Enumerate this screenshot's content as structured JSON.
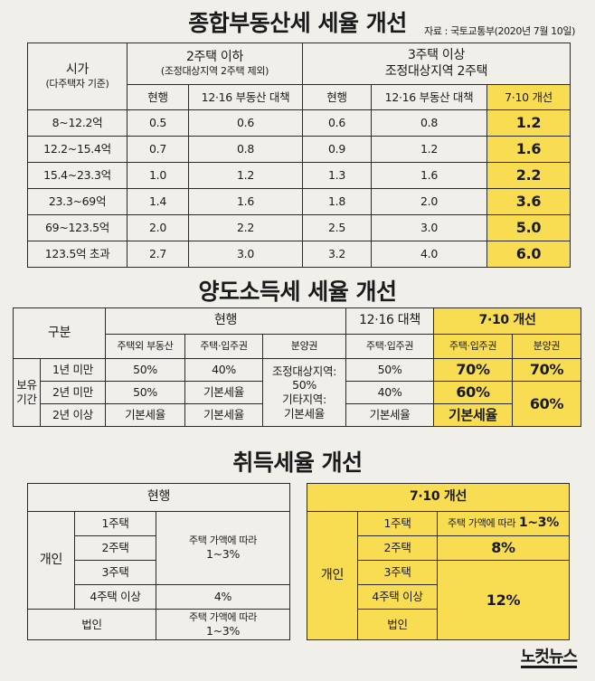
{
  "titles": {
    "t1": "종합부동산세 세율 개선",
    "t2": "양도소득세 세율 개선",
    "t3": "취득세율 개선"
  },
  "source": "자료 : 국토교통부(2020년 7월 10일)",
  "table1": {
    "rowHeader1": "시가",
    "rowHeader2": "(다주택자 기준)",
    "group1_l1": "2주택 이하",
    "group1_l2": "(조정대상지역 2주택 제외)",
    "group2_l1": "3주택 이상",
    "group2_l2": "조정대상지역 2주택",
    "sub_current1": "현행",
    "sub_plan1": "12·16 부동산 대책",
    "sub_current2": "현행",
    "sub_plan2": "12·16 부동산 대책",
    "sub_new": "7·10 개선",
    "rows": [
      {
        "range": "8~12.2억",
        "a": "0.5",
        "b": "0.6",
        "c": "0.6",
        "d": "0.8",
        "e": "1.2"
      },
      {
        "range": "12.2~15.4억",
        "a": "0.7",
        "b": "0.8",
        "c": "0.9",
        "d": "1.2",
        "e": "1.6"
      },
      {
        "range": "15.4~23.3억",
        "a": "1.0",
        "b": "1.2",
        "c": "1.3",
        "d": "1.6",
        "e": "2.2"
      },
      {
        "range": "23.3~69억",
        "a": "1.4",
        "b": "1.6",
        "c": "1.8",
        "d": "2.0",
        "e": "3.6"
      },
      {
        "range": "69~123.5억",
        "a": "2.0",
        "b": "2.2",
        "c": "2.5",
        "d": "3.0",
        "e": "5.0"
      },
      {
        "range": "123.5억 초과",
        "a": "2.7",
        "b": "3.0",
        "c": "3.2",
        "d": "4.0",
        "e": "6.0"
      }
    ]
  },
  "table2": {
    "gubun": "구분",
    "current": "현행",
    "plan": "12·16 대책",
    "new": "7·10 개선",
    "h_cur1": "주택외 부동산",
    "h_cur2": "주택·입주권",
    "h_cur3": "분양권",
    "h_plan": "주택·입주권",
    "h_new1": "주택·입주권",
    "h_new2": "분양권",
    "holding_1": "보유",
    "holding_2": "기간",
    "r1_label": "1년 미만",
    "r2_label": "2년 미만",
    "r3_label": "2년 이상",
    "r1_c1": "50%",
    "r1_c2": "40%",
    "r2_c1": "50%",
    "r2_c2": "기본세율",
    "r3_c1": "기본세율",
    "r3_c2": "기본세율",
    "bun_1": "조정대상지역:",
    "bun_2": "50%",
    "bun_3": "기타지역:",
    "bun_4": "기본세율",
    "r1_p": "50%",
    "r2_p": "40%",
    "r3_p": "기본세율",
    "r1_n1": "70%",
    "r1_n2": "70%",
    "r2_n1": "60%",
    "r23_n2": "60%",
    "r3_n1": "기본세율"
  },
  "table3L": {
    "head": "현행",
    "individual": "개인",
    "h1": "1주택",
    "h2": "2주택",
    "h3": "3주택",
    "h4": "4주택 이상",
    "rate_main_1": "주택 가액에 따라",
    "rate_main_2": "1~3%",
    "rate_4": "4%",
    "corp": "법인",
    "corp_rate_1": "주택 가액에 따라",
    "corp_rate_2": "1~3%"
  },
  "table3R": {
    "head": "7·10 개선",
    "individual": "개인",
    "h1": "1주택",
    "h2": "2주택",
    "h3": "3주택",
    "h4": "4주택 이상",
    "rate1_a": "주택 가액에 따라",
    "rate1_b": "1~3%",
    "rate2": "8%",
    "rate34": "12%",
    "corp": "법인"
  },
  "logo": "노컷뉴스"
}
